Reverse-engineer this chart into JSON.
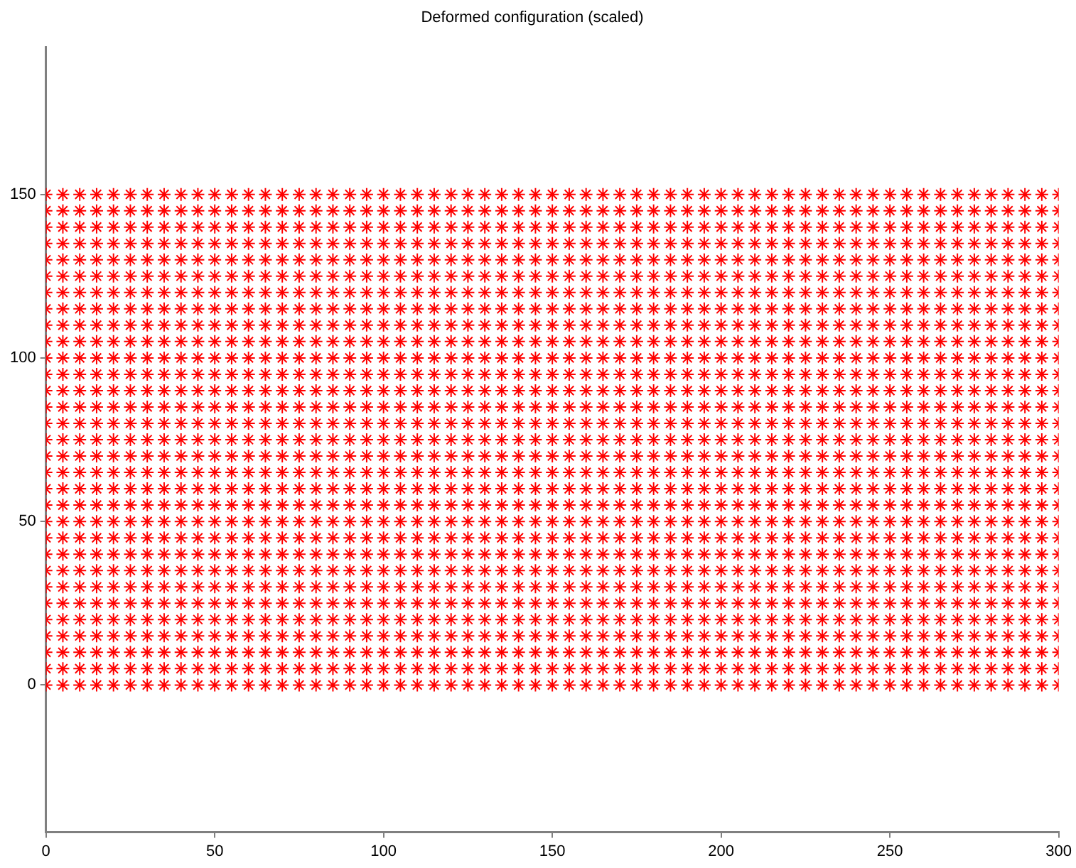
{
  "chart_data": {
    "type": "scatter",
    "title": "Deformed configuration (scaled)",
    "marker": "cross",
    "grid": false,
    "legend": false,
    "xlim": [
      0,
      300
    ],
    "xticks": [
      0,
      50,
      100,
      150,
      200,
      250,
      300
    ],
    "ylim": [
      -45,
      195
    ],
    "yticks": [
      0,
      50,
      100,
      150
    ],
    "x": [
      0,
      5,
      10,
      15,
      20,
      25,
      30,
      35,
      40,
      45,
      50,
      55,
      60,
      65,
      70,
      75,
      80,
      85,
      90,
      95,
      100,
      105,
      110,
      115,
      120,
      125,
      130,
      135,
      140,
      145,
      150,
      155,
      160,
      165,
      170,
      175,
      180,
      185,
      190,
      195,
      200,
      205,
      210,
      215,
      220,
      225,
      230,
      235,
      240,
      245,
      250,
      255,
      260,
      265,
      270,
      275,
      280,
      285,
      290,
      295,
      300
    ],
    "series": [
      {
        "color": "#ff0000",
        "values": [
          0,
          0,
          0,
          0,
          0,
          0,
          0,
          0,
          0,
          0,
          0,
          0,
          0,
          0,
          0,
          0,
          0,
          0,
          0,
          0,
          0,
          0,
          0,
          0,
          0,
          0,
          0,
          0,
          0,
          0,
          0,
          0,
          0,
          0,
          0,
          0,
          0,
          0,
          0,
          0,
          0,
          0,
          0,
          0,
          0,
          0,
          0,
          0,
          0,
          0,
          0,
          0,
          0,
          0,
          0,
          0,
          0,
          0,
          0,
          0,
          0
        ]
      },
      {
        "color": "#ff0000",
        "values": [
          5,
          5,
          5,
          5,
          5,
          5,
          5,
          5,
          5,
          5,
          5,
          5,
          5,
          5,
          5,
          5,
          5,
          5,
          5,
          5,
          5,
          5,
          5,
          5,
          5,
          5,
          5,
          5,
          5,
          5,
          5,
          5,
          5,
          5,
          5,
          5,
          5,
          5,
          5,
          5,
          5,
          5,
          5,
          5,
          5,
          5,
          5,
          5,
          5,
          5,
          5,
          5,
          5,
          5,
          5,
          5,
          5,
          5,
          5,
          5,
          5
        ]
      },
      {
        "color": "#ff0000",
        "values": [
          10,
          10,
          10,
          10,
          10,
          10,
          10,
          10,
          10,
          10,
          10,
          10,
          10,
          10,
          10,
          10,
          10,
          10,
          10,
          10,
          10,
          10,
          10,
          10,
          10,
          10,
          10,
          10,
          10,
          10,
          10,
          10,
          10,
          10,
          10,
          10,
          10,
          10,
          10,
          10,
          10,
          10,
          10,
          10,
          10,
          10,
          10,
          10,
          10,
          10,
          10,
          10,
          10,
          10,
          10,
          10,
          10,
          10,
          10,
          10,
          10
        ]
      },
      {
        "color": "#ff0000",
        "values": [
          15,
          15,
          15,
          15,
          15,
          15,
          15,
          15,
          15,
          15,
          15,
          15,
          15,
          15,
          15,
          15,
          15,
          15,
          15,
          15,
          15,
          15,
          15,
          15,
          15,
          15,
          15,
          15,
          15,
          15,
          15,
          15,
          15,
          15,
          15,
          15,
          15,
          15,
          15,
          15,
          15,
          15,
          15,
          15,
          15,
          15,
          15,
          15,
          15,
          15,
          15,
          15,
          15,
          15,
          15,
          15,
          15,
          15,
          15,
          15,
          15
        ]
      },
      {
        "color": "#ff0000",
        "values": [
          20,
          20,
          20,
          20,
          20,
          20,
          20,
          20,
          20,
          20,
          20,
          20,
          20,
          20,
          20,
          20,
          20,
          20,
          20,
          20,
          20,
          20,
          20,
          20,
          20,
          20,
          20,
          20,
          20,
          20,
          20,
          20,
          20,
          20,
          20,
          20,
          20,
          20,
          20,
          20,
          20,
          20,
          20,
          20,
          20,
          20,
          20,
          20,
          20,
          20,
          20,
          20,
          20,
          20,
          20,
          20,
          20,
          20,
          20,
          20,
          20
        ]
      },
      {
        "color": "#ff0000",
        "values": [
          25,
          25,
          25,
          25,
          25,
          25,
          25,
          25,
          25,
          25,
          25,
          25,
          25,
          25,
          25,
          25,
          25,
          25,
          25,
          25,
          25,
          25,
          25,
          25,
          25,
          25,
          25,
          25,
          25,
          25,
          25,
          25,
          25,
          25,
          25,
          25,
          25,
          25,
          25,
          25,
          25,
          25,
          25,
          25,
          25,
          25,
          25,
          25,
          25,
          25,
          25,
          25,
          25,
          25,
          25,
          25,
          25,
          25,
          25,
          25,
          25
        ]
      },
      {
        "color": "#ff0000",
        "values": [
          30,
          30,
          30,
          30,
          30,
          30,
          30,
          30,
          30,
          30,
          30,
          30,
          30,
          30,
          30,
          30,
          30,
          30,
          30,
          30,
          30,
          30,
          30,
          30,
          30,
          30,
          30,
          30,
          30,
          30,
          30,
          30,
          30,
          30,
          30,
          30,
          30,
          30,
          30,
          30,
          30,
          30,
          30,
          30,
          30,
          30,
          30,
          30,
          30,
          30,
          30,
          30,
          30,
          30,
          30,
          30,
          30,
          30,
          30,
          30,
          30
        ]
      },
      {
        "color": "#ff0000",
        "values": [
          35,
          35,
          35,
          35,
          35,
          35,
          35,
          35,
          35,
          35,
          35,
          35,
          35,
          35,
          35,
          35,
          35,
          35,
          35,
          35,
          35,
          35,
          35,
          35,
          35,
          35,
          35,
          35,
          35,
          35,
          35,
          35,
          35,
          35,
          35,
          35,
          35,
          35,
          35,
          35,
          35,
          35,
          35,
          35,
          35,
          35,
          35,
          35,
          35,
          35,
          35,
          35,
          35,
          35,
          35,
          35,
          35,
          35,
          35,
          35,
          35
        ]
      },
      {
        "color": "#ff0000",
        "values": [
          40,
          40,
          40,
          40,
          40,
          40,
          40,
          40,
          40,
          40,
          40,
          40,
          40,
          40,
          40,
          40,
          40,
          40,
          40,
          40,
          40,
          40,
          40,
          40,
          40,
          40,
          40,
          40,
          40,
          40,
          40,
          40,
          40,
          40,
          40,
          40,
          40,
          40,
          40,
          40,
          40,
          40,
          40,
          40,
          40,
          40,
          40,
          40,
          40,
          40,
          40,
          40,
          40,
          40,
          40,
          40,
          40,
          40,
          40,
          40,
          40
        ]
      },
      {
        "color": "#ff0000",
        "values": [
          45,
          45,
          45,
          45,
          45,
          45,
          45,
          45,
          45,
          45,
          45,
          45,
          45,
          45,
          45,
          45,
          45,
          45,
          45,
          45,
          45,
          45,
          45,
          45,
          45,
          45,
          45,
          45,
          45,
          45,
          45,
          45,
          45,
          45,
          45,
          45,
          45,
          45,
          45,
          45,
          45,
          45,
          45,
          45,
          45,
          45,
          45,
          45,
          45,
          45,
          45,
          45,
          45,
          45,
          45,
          45,
          45,
          45,
          45,
          45,
          45
        ]
      },
      {
        "color": "#ff0000",
        "values": [
          50,
          50,
          50,
          50,
          50,
          50,
          50,
          50,
          50,
          50,
          50,
          50,
          50,
          50,
          50,
          50,
          50,
          50,
          50,
          50,
          50,
          50,
          50,
          50,
          50,
          50,
          50,
          50,
          50,
          50,
          50,
          50,
          50,
          50,
          50,
          50,
          50,
          50,
          50,
          50,
          50,
          50,
          50,
          50,
          50,
          50,
          50,
          50,
          50,
          50,
          50,
          50,
          50,
          50,
          50,
          50,
          50,
          50,
          50,
          50,
          50
        ]
      },
      {
        "color": "#ff0000",
        "values": [
          55,
          55,
          55,
          55,
          55,
          55,
          55,
          55,
          55,
          55,
          55,
          55,
          55,
          55,
          55,
          55,
          55,
          55,
          55,
          55,
          55,
          55,
          55,
          55,
          55,
          55,
          55,
          55,
          55,
          55,
          55,
          55,
          55,
          55,
          55,
          55,
          55,
          55,
          55,
          55,
          55,
          55,
          55,
          55,
          55,
          55,
          55,
          55,
          55,
          55,
          55,
          55,
          55,
          55,
          55,
          55,
          55,
          55,
          55,
          55,
          55
        ]
      },
      {
        "color": "#ff0000",
        "values": [
          60,
          60,
          60,
          60,
          60,
          60,
          60,
          60,
          60,
          60,
          60,
          60,
          60,
          60,
          60,
          60,
          60,
          60,
          60,
          60,
          60,
          60,
          60,
          60,
          60,
          60,
          60,
          60,
          60,
          60,
          60,
          60,
          60,
          60,
          60,
          60,
          60,
          60,
          60,
          60,
          60,
          60,
          60,
          60,
          60,
          60,
          60,
          60,
          60,
          60,
          60,
          60,
          60,
          60,
          60,
          60,
          60,
          60,
          60,
          60,
          60
        ]
      },
      {
        "color": "#ff0000",
        "values": [
          65,
          65,
          65,
          65,
          65,
          65,
          65,
          65,
          65,
          65,
          65,
          65,
          65,
          65,
          65,
          65,
          65,
          65,
          65,
          65,
          65,
          65,
          65,
          65,
          65,
          65,
          65,
          65,
          65,
          65,
          65,
          65,
          65,
          65,
          65,
          65,
          65,
          65,
          65,
          65,
          65,
          65,
          65,
          65,
          65,
          65,
          65,
          65,
          65,
          65,
          65,
          65,
          65,
          65,
          65,
          65,
          65,
          65,
          65,
          65,
          65
        ]
      },
      {
        "color": "#ff0000",
        "values": [
          70,
          70,
          70,
          70,
          70,
          70,
          70,
          70,
          70,
          70,
          70,
          70,
          70,
          70,
          70,
          70,
          70,
          70,
          70,
          70,
          70,
          70,
          70,
          70,
          70,
          70,
          70,
          70,
          70,
          70,
          70,
          70,
          70,
          70,
          70,
          70,
          70,
          70,
          70,
          70,
          70,
          70,
          70,
          70,
          70,
          70,
          70,
          70,
          70,
          70,
          70,
          70,
          70,
          70,
          70,
          70,
          70,
          70,
          70,
          70,
          70
        ]
      },
      {
        "color": "#ff0000",
        "values": [
          75,
          75,
          75,
          75,
          75,
          75,
          75,
          75,
          75,
          75,
          75,
          75,
          75,
          75,
          75,
          75,
          75,
          75,
          75,
          75,
          75,
          75,
          75,
          75,
          75,
          75,
          75,
          75,
          75,
          75,
          75,
          75,
          75,
          75,
          75,
          75,
          75,
          75,
          75,
          75,
          75,
          75,
          75,
          75,
          75,
          75,
          75,
          75,
          75,
          75,
          75,
          75,
          75,
          75,
          75,
          75,
          75,
          75,
          75,
          75,
          75
        ]
      },
      {
        "color": "#ff0000",
        "values": [
          80,
          80,
          80,
          80,
          80,
          80,
          80,
          80,
          80,
          80,
          80,
          80,
          80,
          80,
          80,
          80,
          80,
          80,
          80,
          80,
          80,
          80,
          80,
          80,
          80,
          80,
          80,
          80,
          80,
          80,
          80,
          80,
          80,
          80,
          80,
          80,
          80,
          80,
          80,
          80,
          80,
          80,
          80,
          80,
          80,
          80,
          80,
          80,
          80,
          80,
          80,
          80,
          80,
          80,
          80,
          80,
          80,
          80,
          80,
          80,
          80
        ]
      },
      {
        "color": "#ff0000",
        "values": [
          85,
          85,
          85,
          85,
          85,
          85,
          85,
          85,
          85,
          85,
          85,
          85,
          85,
          85,
          85,
          85,
          85,
          85,
          85,
          85,
          85,
          85,
          85,
          85,
          85,
          85,
          85,
          85,
          85,
          85,
          85,
          85,
          85,
          85,
          85,
          85,
          85,
          85,
          85,
          85,
          85,
          85,
          85,
          85,
          85,
          85,
          85,
          85,
          85,
          85,
          85,
          85,
          85,
          85,
          85,
          85,
          85,
          85,
          85,
          85,
          85
        ]
      },
      {
        "color": "#ff0000",
        "values": [
          90,
          90,
          90,
          90,
          90,
          90,
          90,
          90,
          90,
          90,
          90,
          90,
          90,
          90,
          90,
          90,
          90,
          90,
          90,
          90,
          90,
          90,
          90,
          90,
          90,
          90,
          90,
          90,
          90,
          90,
          90,
          90,
          90,
          90,
          90,
          90,
          90,
          90,
          90,
          90,
          90,
          90,
          90,
          90,
          90,
          90,
          90,
          90,
          90,
          90,
          90,
          90,
          90,
          90,
          90,
          90,
          90,
          90,
          90,
          90,
          90
        ]
      },
      {
        "color": "#ff0000",
        "values": [
          95,
          95,
          95,
          95,
          95,
          95,
          95,
          95,
          95,
          95,
          95,
          95,
          95,
          95,
          95,
          95,
          95,
          95,
          95,
          95,
          95,
          95,
          95,
          95,
          95,
          95,
          95,
          95,
          95,
          95,
          95,
          95,
          95,
          95,
          95,
          95,
          95,
          95,
          95,
          95,
          95,
          95,
          95,
          95,
          95,
          95,
          95,
          95,
          95,
          95,
          95,
          95,
          95,
          95,
          95,
          95,
          95,
          95,
          95,
          95,
          95
        ]
      },
      {
        "color": "#ff0000",
        "values": [
          100,
          100,
          100,
          100,
          100,
          100,
          100,
          100,
          100,
          100,
          100,
          100,
          100,
          100,
          100,
          100,
          100,
          100,
          100,
          100,
          100,
          100,
          100,
          100,
          100,
          100,
          100,
          100,
          100,
          100,
          100,
          100,
          100,
          100,
          100,
          100,
          100,
          100,
          100,
          100,
          100,
          100,
          100,
          100,
          100,
          100,
          100,
          100,
          100,
          100,
          100,
          100,
          100,
          100,
          100,
          100,
          100,
          100,
          100,
          100,
          100
        ]
      },
      {
        "color": "#ff0000",
        "values": [
          105,
          105,
          105,
          105,
          105,
          105,
          105,
          105,
          105,
          105,
          105,
          105,
          105,
          105,
          105,
          105,
          105,
          105,
          105,
          105,
          105,
          105,
          105,
          105,
          105,
          105,
          105,
          105,
          105,
          105,
          105,
          105,
          105,
          105,
          105,
          105,
          105,
          105,
          105,
          105,
          105,
          105,
          105,
          105,
          105,
          105,
          105,
          105,
          105,
          105,
          105,
          105,
          105,
          105,
          105,
          105,
          105,
          105,
          105,
          105,
          105
        ]
      },
      {
        "color": "#ff0000",
        "values": [
          110,
          110,
          110,
          110,
          110,
          110,
          110,
          110,
          110,
          110,
          110,
          110,
          110,
          110,
          110,
          110,
          110,
          110,
          110,
          110,
          110,
          110,
          110,
          110,
          110,
          110,
          110,
          110,
          110,
          110,
          110,
          110,
          110,
          110,
          110,
          110,
          110,
          110,
          110,
          110,
          110,
          110,
          110,
          110,
          110,
          110,
          110,
          110,
          110,
          110,
          110,
          110,
          110,
          110,
          110,
          110,
          110,
          110,
          110,
          110,
          110
        ]
      },
      {
        "color": "#ff0000",
        "values": [
          115,
          115,
          115,
          115,
          115,
          115,
          115,
          115,
          115,
          115,
          115,
          115,
          115,
          115,
          115,
          115,
          115,
          115,
          115,
          115,
          115,
          115,
          115,
          115,
          115,
          115,
          115,
          115,
          115,
          115,
          115,
          115,
          115,
          115,
          115,
          115,
          115,
          115,
          115,
          115,
          115,
          115,
          115,
          115,
          115,
          115,
          115,
          115,
          115,
          115,
          115,
          115,
          115,
          115,
          115,
          115,
          115,
          115,
          115,
          115,
          115
        ]
      },
      {
        "color": "#ff0000",
        "values": [
          120,
          120,
          120,
          120,
          120,
          120,
          120,
          120,
          120,
          120,
          120,
          120,
          120,
          120,
          120,
          120,
          120,
          120,
          120,
          120,
          120,
          120,
          120,
          120,
          120,
          120,
          120,
          120,
          120,
          120,
          120,
          120,
          120,
          120,
          120,
          120,
          120,
          120,
          120,
          120,
          120,
          120,
          120,
          120,
          120,
          120,
          120,
          120,
          120,
          120,
          120,
          120,
          120,
          120,
          120,
          120,
          120,
          120,
          120,
          120,
          120
        ]
      },
      {
        "color": "#ff0000",
        "values": [
          125,
          125,
          125,
          125,
          125,
          125,
          125,
          125,
          125,
          125,
          125,
          125,
          125,
          125,
          125,
          125,
          125,
          125,
          125,
          125,
          125,
          125,
          125,
          125,
          125,
          125,
          125,
          125,
          125,
          125,
          125,
          125,
          125,
          125,
          125,
          125,
          125,
          125,
          125,
          125,
          125,
          125,
          125,
          125,
          125,
          125,
          125,
          125,
          125,
          125,
          125,
          125,
          125,
          125,
          125,
          125,
          125,
          125,
          125,
          125,
          125
        ]
      },
      {
        "color": "#ff0000",
        "values": [
          130,
          130,
          130,
          130,
          130,
          130,
          130,
          130,
          130,
          130,
          130,
          130,
          130,
          130,
          130,
          130,
          130,
          130,
          130,
          130,
          130,
          130,
          130,
          130,
          130,
          130,
          130,
          130,
          130,
          130,
          130,
          130,
          130,
          130,
          130,
          130,
          130,
          130,
          130,
          130,
          130,
          130,
          130,
          130,
          130,
          130,
          130,
          130,
          130,
          130,
          130,
          130,
          130,
          130,
          130,
          130,
          130,
          130,
          130,
          130,
          130
        ]
      },
      {
        "color": "#ff0000",
        "values": [
          135,
          135,
          135,
          135,
          135,
          135,
          135,
          135,
          135,
          135,
          135,
          135,
          135,
          135,
          135,
          135,
          135,
          135,
          135,
          135,
          135,
          135,
          135,
          135,
          135,
          135,
          135,
          135,
          135,
          135,
          135,
          135,
          135,
          135,
          135,
          135,
          135,
          135,
          135,
          135,
          135,
          135,
          135,
          135,
          135,
          135,
          135,
          135,
          135,
          135,
          135,
          135,
          135,
          135,
          135,
          135,
          135,
          135,
          135,
          135,
          135
        ]
      },
      {
        "color": "#ff0000",
        "values": [
          140,
          140,
          140,
          140,
          140,
          140,
          140,
          140,
          140,
          140,
          140,
          140,
          140,
          140,
          140,
          140,
          140,
          140,
          140,
          140,
          140,
          140,
          140,
          140,
          140,
          140,
          140,
          140,
          140,
          140,
          140,
          140,
          140,
          140,
          140,
          140,
          140,
          140,
          140,
          140,
          140,
          140,
          140,
          140,
          140,
          140,
          140,
          140,
          140,
          140,
          140,
          140,
          140,
          140,
          140,
          140,
          140,
          140,
          140,
          140,
          140
        ]
      },
      {
        "color": "#ff0000",
        "values": [
          145,
          145,
          145,
          145,
          145,
          145,
          145,
          145,
          145,
          145,
          145,
          145,
          145,
          145,
          145,
          145,
          145,
          145,
          145,
          145,
          145,
          145,
          145,
          145,
          145,
          145,
          145,
          145,
          145,
          145,
          145,
          145,
          145,
          145,
          145,
          145,
          145,
          145,
          145,
          145,
          145,
          145,
          145,
          145,
          145,
          145,
          145,
          145,
          145,
          145,
          145,
          145,
          145,
          145,
          145,
          145,
          145,
          145,
          145,
          145,
          145
        ]
      },
      {
        "color": "#ff0000",
        "values": [
          150,
          150,
          150,
          150,
          150,
          150,
          150,
          150,
          150,
          150,
          150,
          150,
          150,
          150,
          150,
          150,
          150,
          150,
          150,
          150,
          150,
          150,
          150,
          150,
          150,
          150,
          150,
          150,
          150,
          150,
          150,
          150,
          150,
          150,
          150,
          150,
          150,
          150,
          150,
          150,
          150,
          150,
          150,
          150,
          150,
          150,
          150,
          150,
          150,
          150,
          150,
          150,
          150,
          150,
          150,
          150,
          150,
          150,
          150,
          150,
          150
        ]
      }
    ]
  }
}
